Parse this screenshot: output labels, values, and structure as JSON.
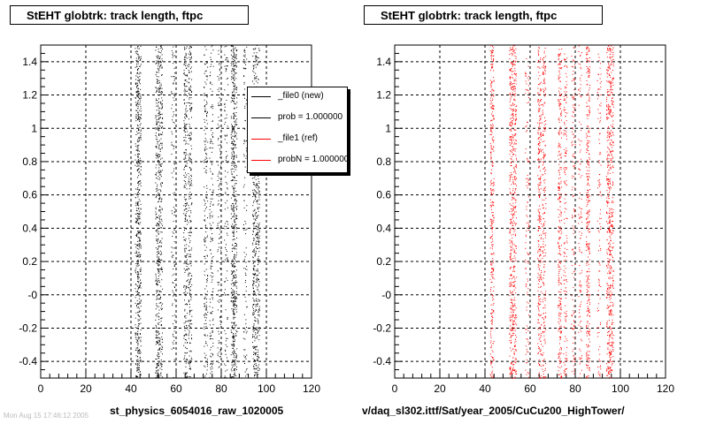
{
  "chart_data": [
    {
      "type": "scatter",
      "title": "StEHT globtrk: track length, ftpc",
      "caption": "st_physics_6054016_raw_1020005",
      "xlim": [
        0,
        120
      ],
      "ylim": [
        -0.5,
        1.5
      ],
      "x_ticks": [
        "0",
        "20",
        "40",
        "60",
        "80",
        "100",
        "120"
      ],
      "y_ticks": [
        "-0.4",
        "-0.2",
        "-0",
        "0.2",
        "0.4",
        "0.6",
        "0.8",
        "1",
        "1.2",
        "1.4"
      ],
      "grid": true,
      "marker_color": "#000000",
      "bands_x": [
        42.5,
        43.5,
        51.5,
        53,
        58.5,
        64,
        66,
        73,
        75.5,
        79,
        82,
        85,
        86,
        90.5,
        94.5,
        96
      ],
      "bands_weight": [
        0.8,
        1,
        1,
        0.9,
        0.35,
        0.9,
        0.8,
        0.6,
        0.5,
        0.4,
        0.35,
        1,
        0.9,
        0.35,
        1,
        0.9
      ],
      "legend": {
        "placement": "top-right",
        "entries": [
          {
            "label": "_file0 (new)",
            "color": "#000000"
          },
          {
            "label": "prob = 1.000000",
            "color": "#000000"
          },
          {
            "label": "_file1 (ref)",
            "color": "#ff0000"
          },
          {
            "label": "probN = 1.000000",
            "color": "#ff0000"
          }
        ]
      }
    },
    {
      "type": "scatter",
      "title": "StEHT globtrk: track length, ftpc",
      "caption": "v/daq_sl302.ittf/Sat/year_2005/CuCu200_HighTower/",
      "xlim": [
        0,
        120
      ],
      "ylim": [
        -0.5,
        1.5
      ],
      "x_ticks": [
        "0",
        "20",
        "40",
        "60",
        "80",
        "100",
        "120"
      ],
      "y_ticks": [
        "-0.4",
        "-0.2",
        "-0",
        "0.2",
        "0.4",
        "0.6",
        "0.8",
        "1",
        "1.2",
        "1.4"
      ],
      "grid": true,
      "marker_color": "#ff0000",
      "bands_x": [
        43,
        51.5,
        53,
        58.5,
        64,
        66,
        73,
        75.5,
        79,
        82,
        85.5,
        90.5,
        94.5,
        96
      ],
      "bands_weight": [
        1,
        1,
        0.9,
        0.35,
        0.9,
        0.7,
        0.9,
        0.5,
        0.4,
        0.35,
        1,
        0.35,
        1,
        0.9
      ]
    }
  ],
  "footer_text": "Mon Aug 15 17:46:12 2005"
}
